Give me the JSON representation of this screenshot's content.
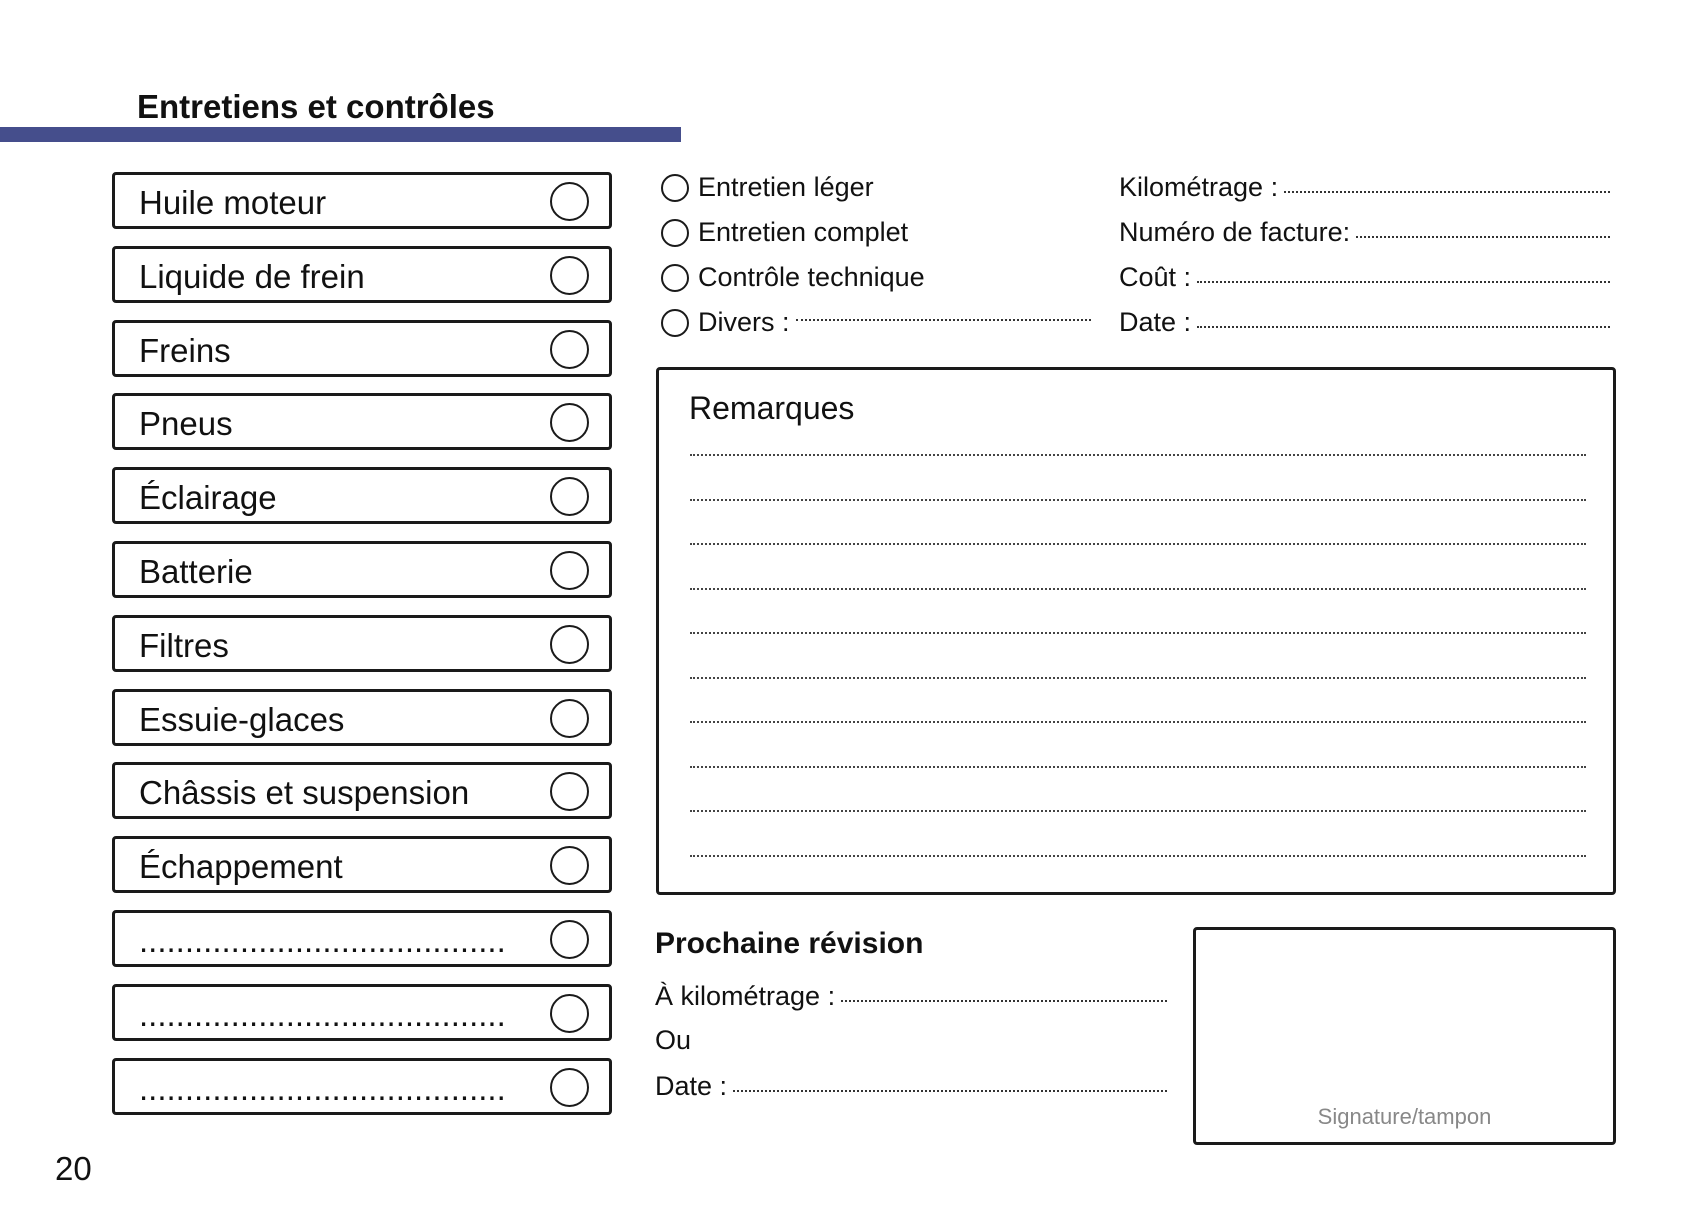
{
  "header": {
    "title": "Entretiens et contrôles",
    "accent_color": "#454e8c"
  },
  "checklist": [
    {
      "label": "Huile moteur"
    },
    {
      "label": "Liquide de frein"
    },
    {
      "label": "Freins"
    },
    {
      "label": "Pneus"
    },
    {
      "label": "Éclairage"
    },
    {
      "label": "Batterie"
    },
    {
      "label": "Filtres"
    },
    {
      "label": "Essuie-glaces"
    },
    {
      "label": "Châssis et suspension"
    },
    {
      "label": "Échappement"
    },
    {
      "label": "........................................"
    },
    {
      "label": "........................................"
    },
    {
      "label": "........................................"
    }
  ],
  "options": [
    {
      "label": "Entretien léger"
    },
    {
      "label": "Entretien complet"
    },
    {
      "label": "Contrôle technique"
    },
    {
      "label": "Divers :"
    }
  ],
  "fields": [
    {
      "label": "Kilométrage :"
    },
    {
      "label": "Numéro de facture:"
    },
    {
      "label": "Coût :"
    },
    {
      "label": "Date :"
    }
  ],
  "remarks": {
    "title": "Remarques"
  },
  "next_service": {
    "title": "Prochaine révision",
    "km_label": "À kilométrage :",
    "or_label": "Ou",
    "date_label": "Date :"
  },
  "signature": {
    "label": "Signature/tampon"
  },
  "page_number": "20"
}
